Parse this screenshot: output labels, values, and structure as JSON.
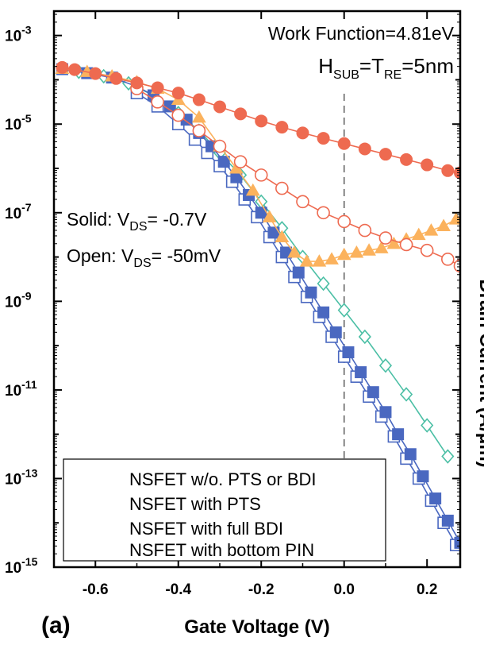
{
  "chart_data": {
    "type": "line",
    "x_ticks": [
      "-0.6",
      "-0.4",
      "-0.2",
      "0.0",
      "0.2"
    ],
    "x_tick_values": [
      -0.6,
      -0.4,
      -0.2,
      0.0,
      0.2
    ],
    "y_ticks": [
      {
        "exp": -3,
        "base": "10",
        "sup": "-3"
      },
      {
        "exp": -5,
        "base": "10",
        "sup": "-5"
      },
      {
        "exp": -7,
        "base": "10",
        "sup": "-7"
      },
      {
        "exp": -9,
        "base": "10",
        "sup": "-9"
      },
      {
        "exp": -11,
        "base": "10",
        "sup": "-11"
      },
      {
        "exp": -13,
        "base": "10",
        "sup": "-13"
      },
      {
        "exp": -15,
        "base": "10",
        "sup": "-15"
      }
    ],
    "xlim": [
      -0.7,
      0.28
    ],
    "ylim_log10": [
      -15,
      -2.45
    ],
    "y_scale": "log",
    "xlabel": "Gate Voltage (V)",
    "ylabel": "Drain Current (A/μm)",
    "panel_label": "(a)",
    "annotations": {
      "work_function": "Work Function=4.81eV",
      "h_main": "H",
      "h_sub": "SUB",
      "t_main": "=T",
      "t_sub": "RE",
      "t_tail": "=5nm",
      "solid_pre": "Solid: V",
      "solid_sub": "DS",
      "solid_post": "= -0.7V",
      "open_pre": "Open: V",
      "open_sub": "DS",
      "open_post": "= -50mV"
    },
    "vline_x": 0.0,
    "legend": {
      "position": "bottom-left",
      "entries": [
        "NSFET w/o. PTS or BDI",
        "NSFET with PTS",
        "NSFET with full BDI",
        "NSFET with bottom PIN"
      ]
    },
    "series": [
      {
        "name": "NSFET w/o. PTS or BDI",
        "vds": "-0.7V",
        "marker": "circle-filled",
        "color": "#ee6a50",
        "x": [
          -0.68,
          -0.65,
          -0.6,
          -0.55,
          -0.5,
          -0.45,
          -0.4,
          -0.35,
          -0.3,
          -0.25,
          -0.2,
          -0.15,
          -0.1,
          -0.05,
          0.0,
          0.05,
          0.1,
          0.15,
          0.2,
          0.25,
          0.28
        ],
        "log10_y": [
          -3.72,
          -3.77,
          -3.86,
          -3.97,
          -4.07,
          -4.18,
          -4.3,
          -4.45,
          -4.61,
          -4.77,
          -4.93,
          -5.07,
          -5.2,
          -5.32,
          -5.44,
          -5.56,
          -5.68,
          -5.8,
          -5.92,
          -6.05,
          -6.1
        ]
      },
      {
        "name": "NSFET w/o. PTS or BDI",
        "vds": "-50mV",
        "marker": "circle-open",
        "color": "#ee6a50",
        "x": [
          -0.5,
          -0.45,
          -0.4,
          -0.35,
          -0.3,
          -0.25,
          -0.2,
          -0.15,
          -0.1,
          -0.05,
          0.0,
          0.05,
          0.1,
          0.15,
          0.2,
          0.25,
          0.28
        ],
        "log10_y": [
          -4.2,
          -4.5,
          -4.8,
          -5.15,
          -5.5,
          -5.85,
          -6.15,
          -6.45,
          -6.75,
          -7.0,
          -7.2,
          -7.4,
          -7.57,
          -7.72,
          -7.85,
          -8.05,
          -8.2
        ]
      },
      {
        "name": "NSFET with PTS",
        "vds": "-0.7V",
        "marker": "triangle-filled",
        "color": "#fbb25d",
        "x": [
          -0.68,
          -0.62,
          -0.56,
          -0.5,
          -0.45,
          -0.4,
          -0.35,
          -0.3,
          -0.26,
          -0.22,
          -0.18,
          -0.15,
          -0.12,
          -0.09,
          -0.06,
          -0.03,
          0.0,
          0.03,
          0.06,
          0.09,
          0.12,
          0.15,
          0.18,
          0.21,
          0.24,
          0.27
        ],
        "log10_y": [
          -3.75,
          -3.82,
          -3.92,
          -4.05,
          -4.2,
          -4.45,
          -4.85,
          -5.5,
          -6.0,
          -6.5,
          -7.1,
          -7.55,
          -7.9,
          -8.1,
          -8.1,
          -8.05,
          -7.95,
          -7.9,
          -7.85,
          -7.8,
          -7.7,
          -7.6,
          -7.5,
          -7.4,
          -7.3,
          -7.15
        ]
      },
      {
        "name": "NSFET with full BDI",
        "vds": "-0.7V",
        "marker": "square-filled",
        "color": "#4a68c0",
        "x": [
          -0.68,
          -0.62,
          -0.56,
          -0.5,
          -0.46,
          -0.42,
          -0.38,
          -0.35,
          -0.32,
          -0.29,
          -0.26,
          -0.23,
          -0.2,
          -0.17,
          -0.14,
          -0.11,
          -0.08,
          -0.05,
          -0.02,
          0.01,
          0.04,
          0.07,
          0.1,
          0.13,
          0.16,
          0.19,
          0.22,
          0.25,
          0.28
        ],
        "log10_y": [
          -3.76,
          -3.85,
          -3.95,
          -4.15,
          -4.35,
          -4.6,
          -4.9,
          -5.2,
          -5.5,
          -5.85,
          -6.2,
          -6.6,
          -7.0,
          -7.45,
          -7.9,
          -8.35,
          -8.8,
          -9.25,
          -9.7,
          -10.15,
          -10.6,
          -11.05,
          -11.5,
          -12.0,
          -12.45,
          -12.95,
          -13.45,
          -13.95,
          -14.45
        ]
      },
      {
        "name": "NSFET with bottom PIN",
        "vds": "-50mV",
        "marker": "square-open",
        "color": "#4a68c0",
        "x": [
          -0.5,
          -0.45,
          -0.4,
          -0.36,
          -0.33,
          -0.3,
          -0.27,
          -0.24,
          -0.21,
          -0.18,
          -0.15,
          -0.12,
          -0.09,
          -0.06,
          -0.03,
          0.0,
          0.03,
          0.06,
          0.09,
          0.12,
          0.15,
          0.18,
          0.21,
          0.24,
          0.27
        ],
        "log10_y": [
          -4.3,
          -4.6,
          -5.0,
          -5.35,
          -5.65,
          -5.95,
          -6.3,
          -6.7,
          -7.1,
          -7.55,
          -8.0,
          -8.45,
          -8.9,
          -9.35,
          -9.8,
          -10.25,
          -10.7,
          -11.15,
          -11.6,
          -12.05,
          -12.55,
          -13.0,
          -13.5,
          -14.0,
          -14.5
        ]
      },
      {
        "name": "NSFET with bottom PIN",
        "vds": "-0.7V",
        "marker": "diamond-open",
        "color": "#4bbfa5",
        "x": [
          -0.64,
          -0.58,
          -0.52,
          -0.46,
          -0.4,
          -0.35,
          -0.3,
          -0.25,
          -0.2,
          -0.15,
          -0.1,
          -0.05,
          0.0,
          0.05,
          0.1,
          0.15,
          0.2,
          0.25
        ],
        "log10_y": [
          -3.82,
          -3.92,
          -4.08,
          -4.35,
          -4.75,
          -5.15,
          -5.65,
          -6.15,
          -6.75,
          -7.35,
          -8.0,
          -8.6,
          -9.2,
          -9.8,
          -10.45,
          -11.1,
          -11.8,
          -12.5
        ]
      }
    ]
  }
}
